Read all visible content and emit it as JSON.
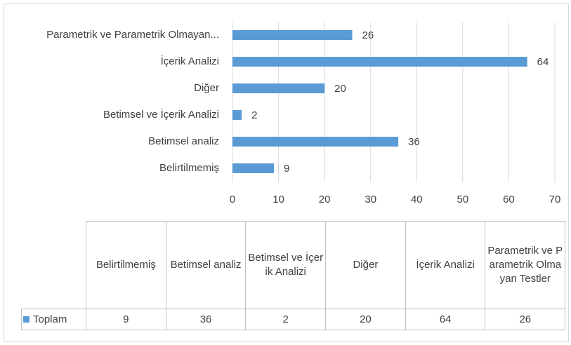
{
  "chart_data": {
    "type": "bar",
    "orientation": "horizontal",
    "categories": [
      "Belirtilmemiş",
      "Betimsel analiz",
      "Betimsel ve İçerik Analizi",
      "Diğer",
      "İçerik Analizi",
      "Parametrik ve Parametrik Olmayan Testler"
    ],
    "category_axis_labels": [
      "Belirtilmemiş",
      "Betimsel analiz",
      "Betimsel ve İçerik Analizi",
      "Diğer",
      "İçerik Analizi",
      "Parametrik ve Parametrik Olmayan..."
    ],
    "series": [
      {
        "name": "Toplam",
        "color": "#5b9bd5",
        "values": [
          9,
          36,
          2,
          20,
          64,
          26
        ]
      }
    ],
    "xlim": [
      0,
      70
    ],
    "xticks": [
      0,
      10,
      20,
      30,
      40,
      50,
      60,
      70
    ],
    "grid": true,
    "data_table": true
  }
}
